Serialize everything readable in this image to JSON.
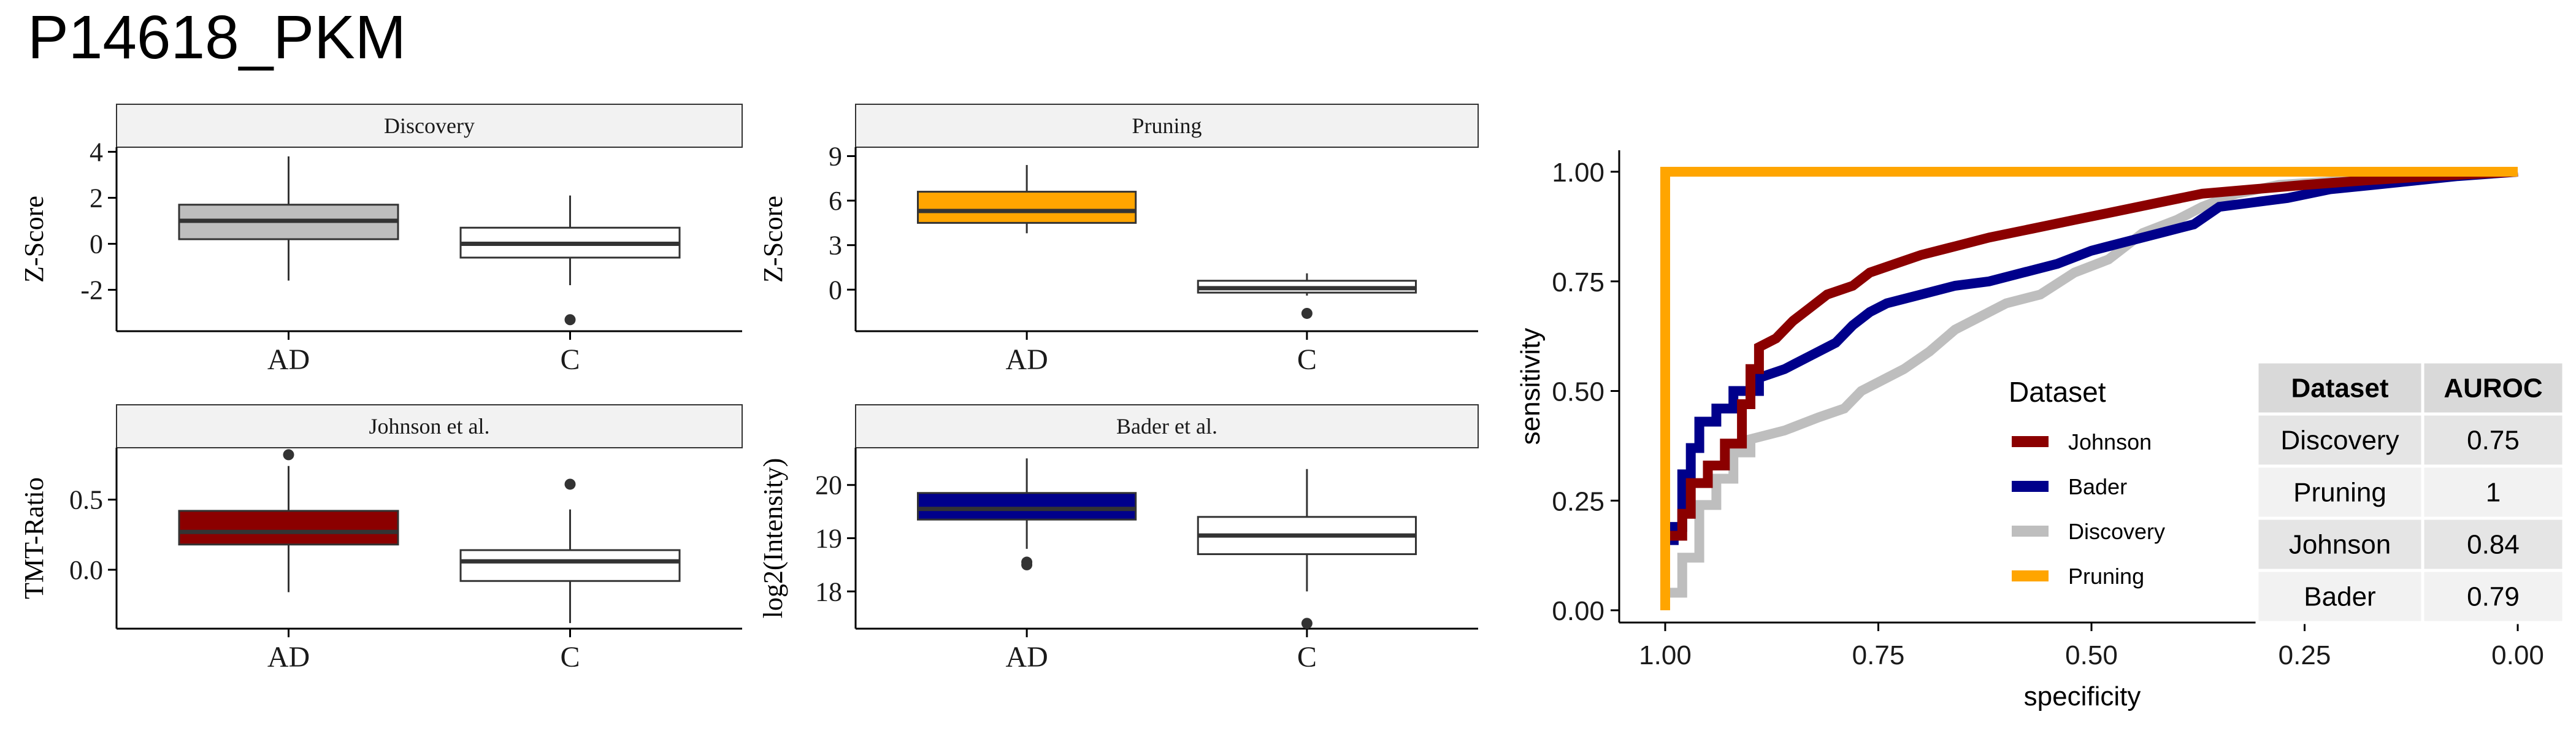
{
  "title": "P14618_PKM",
  "colors": {
    "johnson": "#8B0000",
    "bader": "#00008B",
    "discovery": "#BEBEBE",
    "pruning": "#FFA500",
    "white": "#FFFFFF",
    "strip": "#F2F2F2",
    "box_line": "#333333"
  },
  "boxplots": [
    {
      "id": "discovery",
      "strip_label": "Discovery",
      "ylabel": "Z-Score",
      "ylim": [
        -3.8,
        4.2
      ],
      "yticks": [
        4,
        2,
        0,
        -2
      ],
      "categories": [
        "AD",
        "C"
      ],
      "groups": [
        {
          "category": "AD",
          "fill": "discovery",
          "min": -1.6,
          "q1": 0.2,
          "median": 1.0,
          "q3": 1.7,
          "max": 3.8,
          "outliers": []
        },
        {
          "category": "C",
          "fill": "white",
          "min": -1.8,
          "q1": -0.6,
          "median": 0.0,
          "q3": 0.7,
          "max": 2.1,
          "outliers": [
            -3.3
          ]
        }
      ]
    },
    {
      "id": "pruning",
      "strip_label": "Pruning",
      "ylabel": "Z-Score",
      "ylim": [
        -2.8,
        9.6
      ],
      "yticks": [
        9,
        6,
        3,
        0
      ],
      "categories": [
        "AD",
        "C"
      ],
      "groups": [
        {
          "category": "AD",
          "fill": "pruning",
          "min": 3.8,
          "q1": 4.5,
          "median": 5.3,
          "q3": 6.6,
          "max": 8.4,
          "outliers": []
        },
        {
          "category": "C",
          "fill": "white",
          "min": -0.4,
          "q1": -0.2,
          "median": 0.1,
          "q3": 0.6,
          "max": 1.1,
          "outliers": [
            -1.6
          ]
        }
      ]
    },
    {
      "id": "johnson",
      "strip_label": "Johnson et al.",
      "ylabel": "TMT-Ratio",
      "ylim": [
        -0.42,
        0.87
      ],
      "yticks": [
        0.5,
        0.0
      ],
      "ytick_labels": [
        "0.5",
        "0.0"
      ],
      "categories": [
        "AD",
        "C"
      ],
      "groups": [
        {
          "category": "AD",
          "fill": "johnson",
          "min": -0.16,
          "q1": 0.18,
          "median": 0.27,
          "q3": 0.42,
          "max": 0.74,
          "outliers": [
            0.82
          ]
        },
        {
          "category": "C",
          "fill": "white",
          "min": -0.38,
          "q1": -0.08,
          "median": 0.06,
          "q3": 0.14,
          "max": 0.43,
          "outliers": [
            0.61
          ]
        }
      ]
    },
    {
      "id": "bader",
      "strip_label": "Bader et al.",
      "ylabel": "log2(Intensity)",
      "ylim": [
        17.3,
        20.7
      ],
      "yticks": [
        20,
        19,
        18
      ],
      "categories": [
        "AD",
        "C"
      ],
      "groups": [
        {
          "category": "AD",
          "fill": "bader",
          "min": 18.8,
          "q1": 19.35,
          "median": 19.55,
          "q3": 19.85,
          "max": 20.5,
          "outliers": [
            18.55,
            18.5
          ]
        },
        {
          "category": "C",
          "fill": "white",
          "min": 18.0,
          "q1": 18.7,
          "median": 19.05,
          "q3": 19.4,
          "max": 20.3,
          "outliers": [
            17.4
          ]
        }
      ]
    }
  ],
  "chart_data": {
    "type": "line",
    "xlabel": "specificity",
    "ylabel": "sensitivity",
    "xlim": [
      1.0,
      0.0
    ],
    "ylim": [
      0.0,
      1.0
    ],
    "x_reversed": true,
    "xticks": [
      1.0,
      0.75,
      0.5,
      0.25,
      0.0
    ],
    "xtick_labels": [
      "1.00",
      "0.75",
      "0.50",
      "0.25",
      "0.00"
    ],
    "yticks": [
      0.0,
      0.25,
      0.5,
      0.75,
      1.0
    ],
    "ytick_labels": [
      "0.00",
      "0.25",
      "0.50",
      "0.75",
      "1.00"
    ],
    "legend": {
      "title": "Dataset",
      "placement": "center-right",
      "entries": [
        {
          "label": "Johnson",
          "color": "johnson"
        },
        {
          "label": "Bader",
          "color": "bader"
        },
        {
          "label": "Discovery",
          "color": "discovery"
        },
        {
          "label": "Pruning",
          "color": "pruning"
        }
      ]
    },
    "series": [
      {
        "name": "Discovery",
        "color": "discovery",
        "points": [
          [
            1.0,
            0.0
          ],
          [
            1.0,
            0.04
          ],
          [
            0.98,
            0.04
          ],
          [
            0.98,
            0.12
          ],
          [
            0.96,
            0.12
          ],
          [
            0.96,
            0.24
          ],
          [
            0.94,
            0.24
          ],
          [
            0.94,
            0.3
          ],
          [
            0.92,
            0.3
          ],
          [
            0.92,
            0.36
          ],
          [
            0.9,
            0.36
          ],
          [
            0.9,
            0.39
          ],
          [
            0.86,
            0.41
          ],
          [
            0.82,
            0.44
          ],
          [
            0.79,
            0.46
          ],
          [
            0.77,
            0.5
          ],
          [
            0.75,
            0.52
          ],
          [
            0.72,
            0.55
          ],
          [
            0.69,
            0.59
          ],
          [
            0.66,
            0.64
          ],
          [
            0.63,
            0.67
          ],
          [
            0.6,
            0.7
          ],
          [
            0.56,
            0.72
          ],
          [
            0.52,
            0.77
          ],
          [
            0.48,
            0.8
          ],
          [
            0.44,
            0.86
          ],
          [
            0.4,
            0.89
          ],
          [
            0.37,
            0.92
          ],
          [
            0.33,
            0.95
          ],
          [
            0.28,
            0.97
          ],
          [
            0.2,
            0.98
          ],
          [
            0.1,
            0.99
          ],
          [
            0.0,
            1.0
          ]
        ]
      },
      {
        "name": "Bader",
        "color": "bader",
        "points": [
          [
            1.0,
            0.0
          ],
          [
            1.0,
            0.16
          ],
          [
            0.99,
            0.16
          ],
          [
            0.99,
            0.19
          ],
          [
            0.98,
            0.19
          ],
          [
            0.98,
            0.31
          ],
          [
            0.97,
            0.31
          ],
          [
            0.97,
            0.37
          ],
          [
            0.96,
            0.37
          ],
          [
            0.96,
            0.43
          ],
          [
            0.94,
            0.43
          ],
          [
            0.94,
            0.46
          ],
          [
            0.92,
            0.46
          ],
          [
            0.92,
            0.5
          ],
          [
            0.89,
            0.5
          ],
          [
            0.89,
            0.53
          ],
          [
            0.86,
            0.55
          ],
          [
            0.83,
            0.58
          ],
          [
            0.8,
            0.61
          ],
          [
            0.78,
            0.65
          ],
          [
            0.76,
            0.68
          ],
          [
            0.74,
            0.7
          ],
          [
            0.7,
            0.72
          ],
          [
            0.66,
            0.74
          ],
          [
            0.62,
            0.75
          ],
          [
            0.58,
            0.77
          ],
          [
            0.54,
            0.79
          ],
          [
            0.5,
            0.82
          ],
          [
            0.46,
            0.84
          ],
          [
            0.42,
            0.86
          ],
          [
            0.38,
            0.88
          ],
          [
            0.35,
            0.92
          ],
          [
            0.31,
            0.93
          ],
          [
            0.27,
            0.94
          ],
          [
            0.22,
            0.96
          ],
          [
            0.17,
            0.97
          ],
          [
            0.12,
            0.98
          ],
          [
            0.07,
            0.99
          ],
          [
            0.0,
            1.0
          ]
        ]
      },
      {
        "name": "Johnson",
        "color": "johnson",
        "points": [
          [
            1.0,
            0.0
          ],
          [
            1.0,
            0.17
          ],
          [
            0.98,
            0.17
          ],
          [
            0.98,
            0.22
          ],
          [
            0.97,
            0.22
          ],
          [
            0.97,
            0.29
          ],
          [
            0.95,
            0.29
          ],
          [
            0.95,
            0.33
          ],
          [
            0.93,
            0.33
          ],
          [
            0.93,
            0.38
          ],
          [
            0.91,
            0.38
          ],
          [
            0.91,
            0.47
          ],
          [
            0.9,
            0.47
          ],
          [
            0.9,
            0.55
          ],
          [
            0.89,
            0.55
          ],
          [
            0.89,
            0.6
          ],
          [
            0.87,
            0.62
          ],
          [
            0.85,
            0.66
          ],
          [
            0.83,
            0.69
          ],
          [
            0.81,
            0.72
          ],
          [
            0.78,
            0.74
          ],
          [
            0.76,
            0.77
          ],
          [
            0.73,
            0.79
          ],
          [
            0.7,
            0.81
          ],
          [
            0.66,
            0.83
          ],
          [
            0.62,
            0.85
          ],
          [
            0.57,
            0.87
          ],
          [
            0.52,
            0.89
          ],
          [
            0.47,
            0.91
          ],
          [
            0.42,
            0.93
          ],
          [
            0.37,
            0.95
          ],
          [
            0.31,
            0.96
          ],
          [
            0.25,
            0.97
          ],
          [
            0.18,
            0.98
          ],
          [
            0.1,
            0.99
          ],
          [
            0.0,
            1.0
          ]
        ]
      },
      {
        "name": "Pruning",
        "color": "pruning",
        "points": [
          [
            1.0,
            0.0
          ],
          [
            1.0,
            1.0
          ],
          [
            0.0,
            1.0
          ]
        ]
      }
    ],
    "table": {
      "headers": [
        "Dataset",
        "AUROC"
      ],
      "rows": [
        [
          "Discovery",
          "0.75"
        ],
        [
          "Pruning",
          "1"
        ],
        [
          "Johnson",
          "0.84"
        ],
        [
          "Bader",
          "0.79"
        ]
      ]
    }
  }
}
